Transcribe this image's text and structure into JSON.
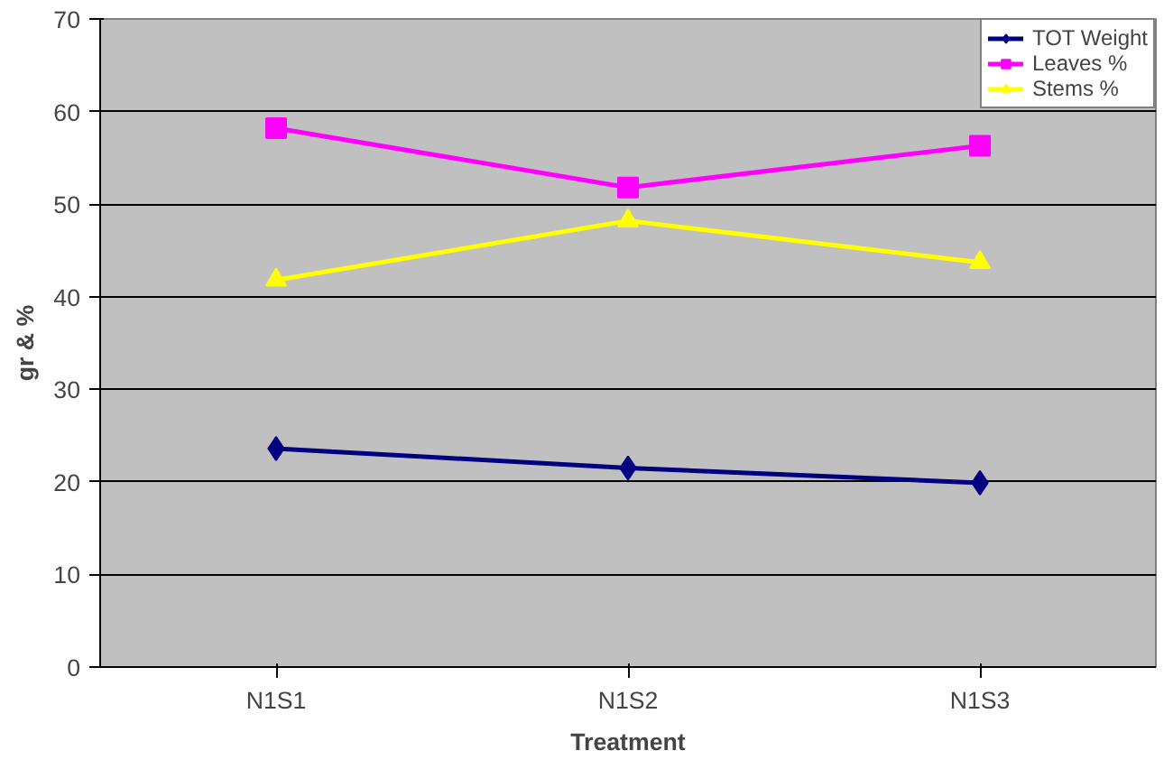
{
  "chart_data": {
    "type": "line",
    "xlabel": "Treatment",
    "ylabel": "gr & %",
    "categories": [
      "N1S1",
      "N1S2",
      "N1S3"
    ],
    "series": [
      {
        "name": "TOT Weight",
        "color": "#000080",
        "marker": "diamond",
        "values": [
          23.6,
          21.5,
          19.9
        ]
      },
      {
        "name": "Leaves %",
        "color": "#ff00ff",
        "marker": "square",
        "values": [
          58.2,
          51.8,
          56.3
        ]
      },
      {
        "name": "Stems %",
        "color": "#ffff00",
        "marker": "triangle",
        "values": [
          41.8,
          48.2,
          43.7
        ]
      }
    ],
    "ylim": [
      0,
      70
    ],
    "yticks": [
      0,
      10,
      20,
      30,
      40,
      50,
      60,
      70
    ],
    "grid": "y",
    "legend": "top right"
  }
}
